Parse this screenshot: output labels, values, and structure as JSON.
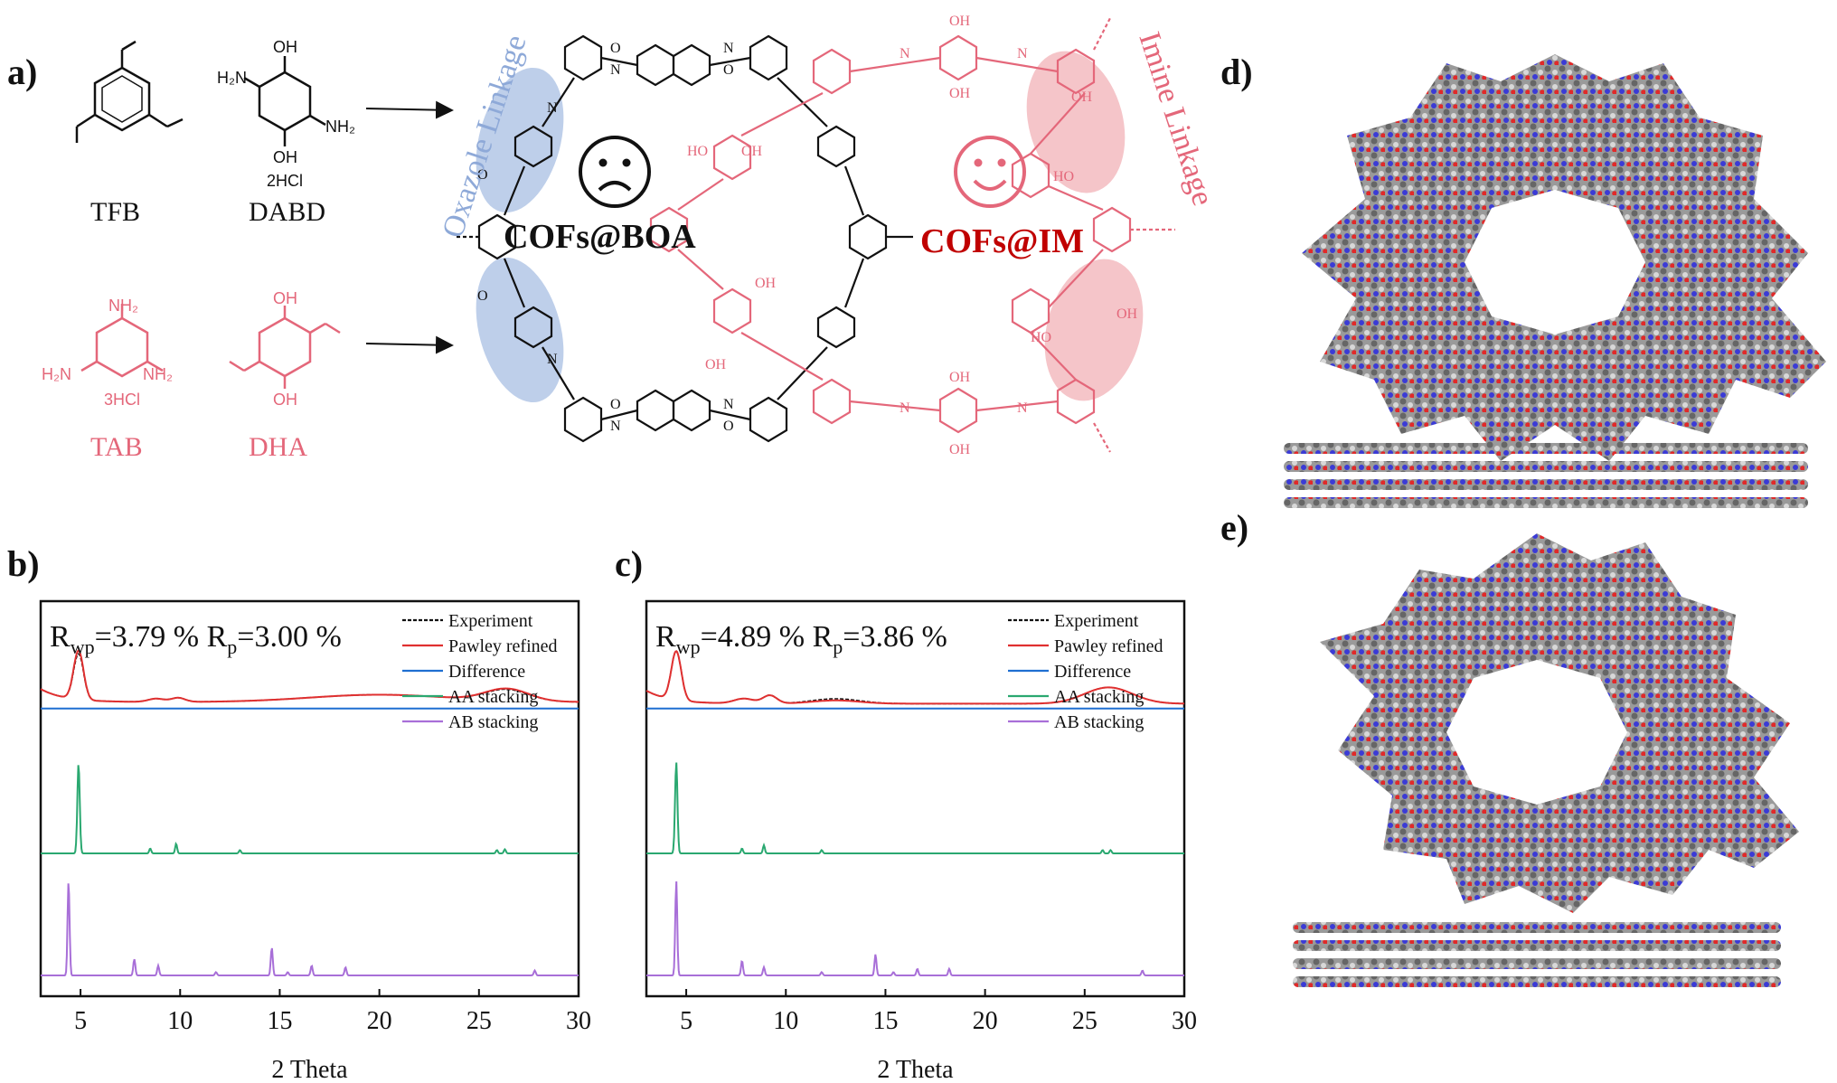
{
  "panels": {
    "a": "a)",
    "b": "b)",
    "c": "c)",
    "d": "d)",
    "e": "e)"
  },
  "molecules": {
    "tfb": {
      "name": "TFB"
    },
    "dabd": {
      "name": "DABD",
      "salt": "2HCl",
      "oh": "OH",
      "nh2": "NH₂",
      "h2n": "H₂N"
    },
    "tab": {
      "name": "TAB",
      "salt": "3HCl",
      "nh2": "NH₂",
      "h2n": "H₂N"
    },
    "dha": {
      "name": "DHA",
      "oh": "OH"
    }
  },
  "scheme": {
    "left_title": "Oxazole Linkage",
    "right_title": "Imine Linkage",
    "cof_boa": "COFs@BOA",
    "cof_im": "COFs@IM",
    "atom_o": "O",
    "atom_n": "N",
    "atom_oh": "OH",
    "atom_ho": "HO"
  },
  "colors": {
    "black": "#111111",
    "pink": "#e4677a",
    "blue_ellipse": "#b3c7e6",
    "pink_ellipse": "#f4bfc3",
    "cof_im_text": "#c00000"
  },
  "chart_data": [
    {
      "type": "line",
      "panel": "b)",
      "xlabel": "2 Theta",
      "xlim": [
        3,
        30
      ],
      "x_ticks": [
        5,
        10,
        15,
        20,
        25,
        30
      ],
      "annotation": {
        "rwp_label": "R",
        "rwp_sub": "wp",
        "rwp_value": "=3.79 %",
        "rp_label": "R",
        "rp_sub": "p",
        "rp_value": "=3.00 %"
      },
      "legend": [
        "Experiment",
        "Pawley refined",
        "Difference",
        "AA stacking",
        "AB stacking"
      ],
      "series": [
        {
          "name": "Experiment",
          "color": "#111111",
          "style": "dashed",
          "baseline": 0.62,
          "peaks": [
            [
              4.9,
              0.28,
              0.25
            ],
            [
              8.8,
              0.02,
              0.4
            ],
            [
              9.9,
              0.025,
              0.35
            ],
            [
              20,
              0.045,
              3.5
            ],
            [
              26.4,
              0.07,
              1.1
            ]
          ]
        },
        {
          "name": "Pawley refined",
          "color": "#e03030",
          "style": "solid",
          "baseline": 0.62,
          "peaks": [
            [
              4.9,
              0.3,
              0.25
            ],
            [
              8.8,
              0.02,
              0.4
            ],
            [
              9.9,
              0.025,
              0.35
            ],
            [
              20,
              0.045,
              3.5
            ],
            [
              26.4,
              0.075,
              1.1
            ]
          ]
        },
        {
          "name": "Difference",
          "color": "#1f6fd1",
          "style": "solid",
          "baseline": 0.66,
          "peaks": []
        },
        {
          "name": "AA stacking",
          "color": "#2aa870",
          "style": "solid",
          "baseline": 1.55,
          "peaks": [
            [
              4.9,
              0.55,
              0.06
            ],
            [
              8.5,
              0.03,
              0.05
            ],
            [
              9.8,
              0.06,
              0.05
            ],
            [
              13,
              0.02,
              0.05
            ],
            [
              25.9,
              0.02,
              0.05
            ],
            [
              26.3,
              0.025,
              0.05
            ]
          ]
        },
        {
          "name": "AB stacking",
          "color": "#a86fd8",
          "style": "solid",
          "baseline": 2.3,
          "peaks": [
            [
              4.4,
              0.58,
              0.05
            ],
            [
              7.7,
              0.1,
              0.05
            ],
            [
              8.9,
              0.06,
              0.05
            ],
            [
              11.8,
              0.02,
              0.05
            ],
            [
              14.6,
              0.17,
              0.05
            ],
            [
              15.4,
              0.02,
              0.05
            ],
            [
              16.6,
              0.06,
              0.05
            ],
            [
              18.3,
              0.05,
              0.05
            ],
            [
              27.8,
              0.03,
              0.05
            ]
          ]
        }
      ]
    },
    {
      "type": "line",
      "panel": "c)",
      "xlabel": "2 Theta",
      "xlim": [
        3,
        30
      ],
      "x_ticks": [
        5,
        10,
        15,
        20,
        25,
        30
      ],
      "annotation": {
        "rwp_label": "R",
        "rwp_sub": "wp",
        "rwp_value": "=4.89 %",
        "rp_label": "R",
        "rp_sub": "p",
        "rp_value": "=3.86 %"
      },
      "legend": [
        "Experiment",
        "Pawley refined",
        "Difference",
        "AA stacking",
        "AB stacking"
      ],
      "series": [
        {
          "name": "Experiment",
          "color": "#111111",
          "style": "dashed",
          "baseline": 0.63,
          "peaks": [
            [
              4.5,
              0.3,
              0.25
            ],
            [
              7.9,
              0.03,
              0.5
            ],
            [
              9.2,
              0.05,
              0.35
            ],
            [
              12.5,
              0.03,
              1.2
            ],
            [
              26.2,
              0.1,
              1.2
            ]
          ]
        },
        {
          "name": "Pawley refined",
          "color": "#e03030",
          "style": "solid",
          "baseline": 0.63,
          "peaks": [
            [
              4.5,
              0.3,
              0.25
            ],
            [
              7.9,
              0.03,
              0.5
            ],
            [
              9.2,
              0.05,
              0.35
            ],
            [
              12.5,
              0.02,
              1.2
            ],
            [
              26.2,
              0.1,
              1.2
            ]
          ]
        },
        {
          "name": "Difference",
          "color": "#1f6fd1",
          "style": "solid",
          "baseline": 0.66,
          "peaks": []
        },
        {
          "name": "AA stacking",
          "color": "#2aa870",
          "style": "solid",
          "baseline": 1.55,
          "peaks": [
            [
              4.5,
              0.56,
              0.06
            ],
            [
              7.8,
              0.03,
              0.05
            ],
            [
              8.9,
              0.05,
              0.05
            ],
            [
              11.8,
              0.02,
              0.05
            ],
            [
              25.9,
              0.02,
              0.05
            ],
            [
              26.3,
              0.02,
              0.05
            ]
          ]
        },
        {
          "name": "AB stacking",
          "color": "#a86fd8",
          "style": "solid",
          "baseline": 2.3,
          "peaks": [
            [
              4.5,
              0.58,
              0.05
            ],
            [
              7.8,
              0.09,
              0.05
            ],
            [
              8.9,
              0.05,
              0.05
            ],
            [
              11.8,
              0.02,
              0.05
            ],
            [
              14.5,
              0.13,
              0.05
            ],
            [
              15.4,
              0.02,
              0.05
            ],
            [
              16.6,
              0.04,
              0.05
            ],
            [
              18.2,
              0.04,
              0.05
            ],
            [
              27.9,
              0.03,
              0.05
            ]
          ]
        }
      ]
    }
  ]
}
